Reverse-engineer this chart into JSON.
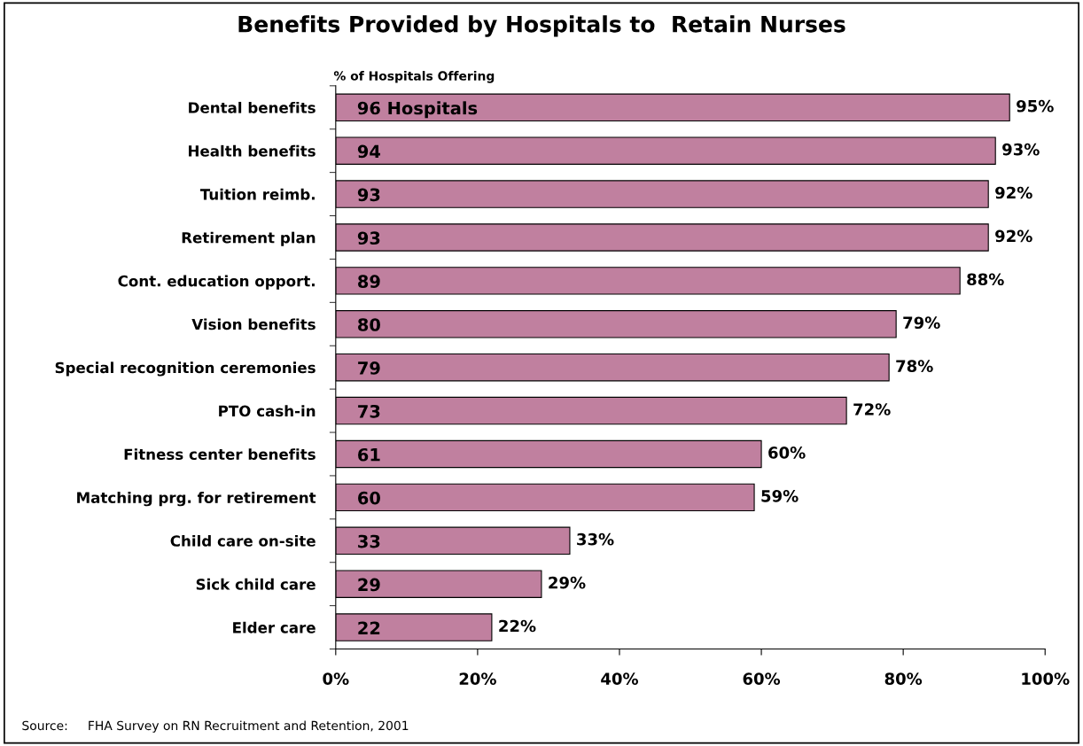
{
  "chart_data": {
    "type": "bar",
    "orientation": "horizontal",
    "title": "Benefits Provided by Hospitals to  Retain Nurses",
    "xlabel": "% of Hospitals Offering",
    "categories": [
      "Dental benefits",
      "Health benefits",
      "Tuition reimb.",
      "Retirement plan",
      "Cont. education opport.",
      "Vision benefits",
      "Special recognition ceremonies",
      "PTO cash-in",
      "Fitness center benefits",
      "Matching prg. for retirement",
      "Child care on-site",
      "Sick child care",
      "Elder care"
    ],
    "values": [
      95,
      93,
      92,
      92,
      88,
      79,
      78,
      72,
      60,
      59,
      33,
      29,
      22
    ],
    "value_labels": [
      "95%",
      "93%",
      "92%",
      "92%",
      "88%",
      "79%",
      "78%",
      "72%",
      "60%",
      "59%",
      "33%",
      "29%",
      "22%"
    ],
    "color": "#c0809f",
    "xlim": [
      0,
      100
    ],
    "xticks": [
      {
        "value": 0,
        "label": "0%"
      },
      {
        "value": 20,
        "label": "20%"
      },
      {
        "value": 40,
        "label": "40%"
      },
      {
        "value": 60,
        "label": "60%"
      },
      {
        "value": 80,
        "label": "80%"
      },
      {
        "value": 100,
        "label": "100%"
      }
    ],
    "grid": false,
    "legend": false,
    "annotations": [
      "96 Hospitals",
      "94",
      "93",
      "93",
      "89",
      "80",
      "79",
      "73",
      "61",
      "60",
      "33",
      "29",
      "22",
      "Source:     FHA Survey on RN Recruitment and Retention, 2001"
    ]
  }
}
